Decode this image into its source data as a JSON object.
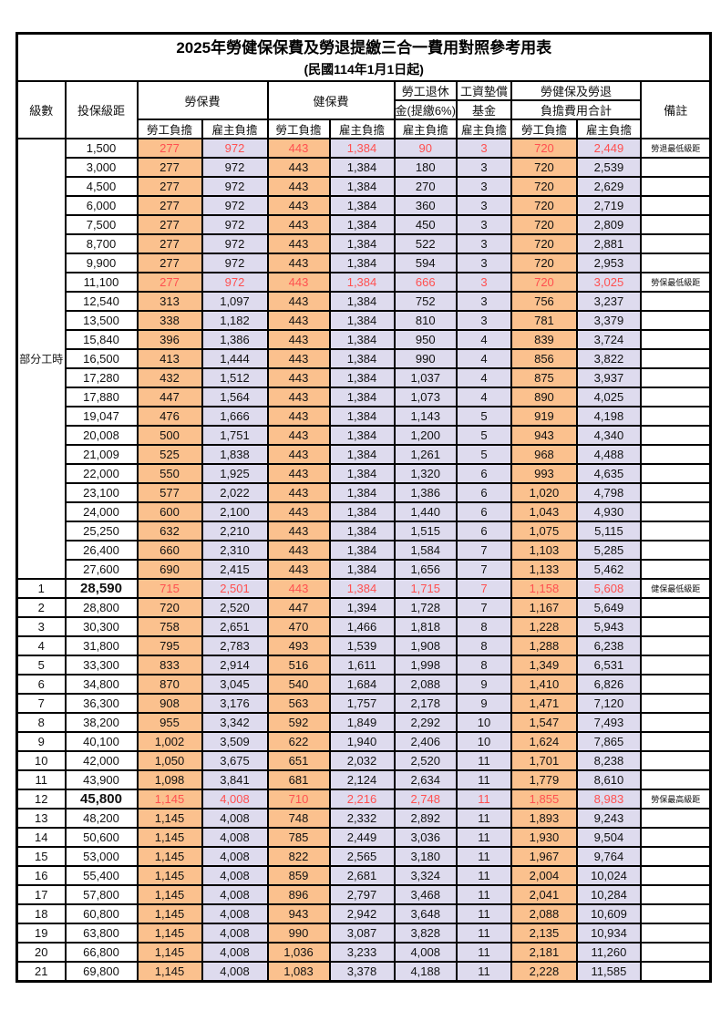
{
  "title": "2025年勞健保保費及勞退提繳三合一費用對照參考用表",
  "subtitle": "(民國114年1月1日起)",
  "columns": {
    "level": "級數",
    "salary_bracket": "投保級距",
    "labor_insurance": "勞保費",
    "health_insurance": "健保費",
    "pension_line1": "勞工退休",
    "pension_line2": "金(提繳6%)",
    "wage_fund_line1": "工資墊償",
    "wage_fund_line2": "基金",
    "total_line1": "勞健保及勞退",
    "total_line2": "負擔費用合計",
    "remark": "備註",
    "employee_share": "勞工負擔",
    "employer_share": "雇主負擔"
  },
  "part_time_label": "部分工時",
  "colors": {
    "employee_bg": "#FBC18E",
    "employer_bg": "#DEDBEE",
    "highlight_text": "#FF5050",
    "remark_text": "#FF4040",
    "border": "#000000"
  },
  "rows": [
    {
      "lv": "",
      "sal": "1,500",
      "li_e": "277",
      "li_r": "972",
      "hi_e": "443",
      "hi_r": "1,384",
      "pen": "90",
      "fund": "3",
      "tot_e": "720",
      "tot_r": "2,449",
      "remark": "勞退最低級距",
      "hl": true,
      "bold": false
    },
    {
      "lv": "",
      "sal": "3,000",
      "li_e": "277",
      "li_r": "972",
      "hi_e": "443",
      "hi_r": "1,384",
      "pen": "180",
      "fund": "3",
      "tot_e": "720",
      "tot_r": "2,539",
      "remark": "",
      "hl": false,
      "bold": false
    },
    {
      "lv": "",
      "sal": "4,500",
      "li_e": "277",
      "li_r": "972",
      "hi_e": "443",
      "hi_r": "1,384",
      "pen": "270",
      "fund": "3",
      "tot_e": "720",
      "tot_r": "2,629",
      "remark": "",
      "hl": false,
      "bold": false
    },
    {
      "lv": "",
      "sal": "6,000",
      "li_e": "277",
      "li_r": "972",
      "hi_e": "443",
      "hi_r": "1,384",
      "pen": "360",
      "fund": "3",
      "tot_e": "720",
      "tot_r": "2,719",
      "remark": "",
      "hl": false,
      "bold": false
    },
    {
      "lv": "",
      "sal": "7,500",
      "li_e": "277",
      "li_r": "972",
      "hi_e": "443",
      "hi_r": "1,384",
      "pen": "450",
      "fund": "3",
      "tot_e": "720",
      "tot_r": "2,809",
      "remark": "",
      "hl": false,
      "bold": false
    },
    {
      "lv": "",
      "sal": "8,700",
      "li_e": "277",
      "li_r": "972",
      "hi_e": "443",
      "hi_r": "1,384",
      "pen": "522",
      "fund": "3",
      "tot_e": "720",
      "tot_r": "2,881",
      "remark": "",
      "hl": false,
      "bold": false
    },
    {
      "lv": "",
      "sal": "9,900",
      "li_e": "277",
      "li_r": "972",
      "hi_e": "443",
      "hi_r": "1,384",
      "pen": "594",
      "fund": "3",
      "tot_e": "720",
      "tot_r": "2,953",
      "remark": "",
      "hl": false,
      "bold": false
    },
    {
      "lv": "",
      "sal": "11,100",
      "li_e": "277",
      "li_r": "972",
      "hi_e": "443",
      "hi_r": "1,384",
      "pen": "666",
      "fund": "3",
      "tot_e": "720",
      "tot_r": "3,025",
      "remark": "勞保最低級距",
      "hl": true,
      "bold": false
    },
    {
      "lv": "",
      "sal": "12,540",
      "li_e": "313",
      "li_r": "1,097",
      "hi_e": "443",
      "hi_r": "1,384",
      "pen": "752",
      "fund": "3",
      "tot_e": "756",
      "tot_r": "3,237",
      "remark": "",
      "hl": false,
      "bold": false
    },
    {
      "lv": "",
      "sal": "13,500",
      "li_e": "338",
      "li_r": "1,182",
      "hi_e": "443",
      "hi_r": "1,384",
      "pen": "810",
      "fund": "3",
      "tot_e": "781",
      "tot_r": "3,379",
      "remark": "",
      "hl": false,
      "bold": false
    },
    {
      "lv": "",
      "sal": "15,840",
      "li_e": "396",
      "li_r": "1,386",
      "hi_e": "443",
      "hi_r": "1,384",
      "pen": "950",
      "fund": "4",
      "tot_e": "839",
      "tot_r": "3,724",
      "remark": "",
      "hl": false,
      "bold": false
    },
    {
      "lv": "",
      "sal": "16,500",
      "li_e": "413",
      "li_r": "1,444",
      "hi_e": "443",
      "hi_r": "1,384",
      "pen": "990",
      "fund": "4",
      "tot_e": "856",
      "tot_r": "3,822",
      "remark": "",
      "hl": false,
      "bold": false
    },
    {
      "lv": "",
      "sal": "17,280",
      "li_e": "432",
      "li_r": "1,512",
      "hi_e": "443",
      "hi_r": "1,384",
      "pen": "1,037",
      "fund": "4",
      "tot_e": "875",
      "tot_r": "3,937",
      "remark": "",
      "hl": false,
      "bold": false
    },
    {
      "lv": "",
      "sal": "17,880",
      "li_e": "447",
      "li_r": "1,564",
      "hi_e": "443",
      "hi_r": "1,384",
      "pen": "1,073",
      "fund": "4",
      "tot_e": "890",
      "tot_r": "4,025",
      "remark": "",
      "hl": false,
      "bold": false
    },
    {
      "lv": "",
      "sal": "19,047",
      "li_e": "476",
      "li_r": "1,666",
      "hi_e": "443",
      "hi_r": "1,384",
      "pen": "1,143",
      "fund": "5",
      "tot_e": "919",
      "tot_r": "4,198",
      "remark": "",
      "hl": false,
      "bold": false
    },
    {
      "lv": "",
      "sal": "20,008",
      "li_e": "500",
      "li_r": "1,751",
      "hi_e": "443",
      "hi_r": "1,384",
      "pen": "1,200",
      "fund": "5",
      "tot_e": "943",
      "tot_r": "4,340",
      "remark": "",
      "hl": false,
      "bold": false
    },
    {
      "lv": "",
      "sal": "21,009",
      "li_e": "525",
      "li_r": "1,838",
      "hi_e": "443",
      "hi_r": "1,384",
      "pen": "1,261",
      "fund": "5",
      "tot_e": "968",
      "tot_r": "4,488",
      "remark": "",
      "hl": false,
      "bold": false
    },
    {
      "lv": "",
      "sal": "22,000",
      "li_e": "550",
      "li_r": "1,925",
      "hi_e": "443",
      "hi_r": "1,384",
      "pen": "1,320",
      "fund": "6",
      "tot_e": "993",
      "tot_r": "4,635",
      "remark": "",
      "hl": false,
      "bold": false
    },
    {
      "lv": "",
      "sal": "23,100",
      "li_e": "577",
      "li_r": "2,022",
      "hi_e": "443",
      "hi_r": "1,384",
      "pen": "1,386",
      "fund": "6",
      "tot_e": "1,020",
      "tot_r": "4,798",
      "remark": "",
      "hl": false,
      "bold": false
    },
    {
      "lv": "",
      "sal": "24,000",
      "li_e": "600",
      "li_r": "2,100",
      "hi_e": "443",
      "hi_r": "1,384",
      "pen": "1,440",
      "fund": "6",
      "tot_e": "1,043",
      "tot_r": "4,930",
      "remark": "",
      "hl": false,
      "bold": false
    },
    {
      "lv": "",
      "sal": "25,250",
      "li_e": "632",
      "li_r": "2,210",
      "hi_e": "443",
      "hi_r": "1,384",
      "pen": "1,515",
      "fund": "6",
      "tot_e": "1,075",
      "tot_r": "5,115",
      "remark": "",
      "hl": false,
      "bold": false
    },
    {
      "lv": "",
      "sal": "26,400",
      "li_e": "660",
      "li_r": "2,310",
      "hi_e": "443",
      "hi_r": "1,384",
      "pen": "1,584",
      "fund": "7",
      "tot_e": "1,103",
      "tot_r": "5,285",
      "remark": "",
      "hl": false,
      "bold": false
    },
    {
      "lv": "",
      "sal": "27,600",
      "li_e": "690",
      "li_r": "2,415",
      "hi_e": "443",
      "hi_r": "1,384",
      "pen": "1,656",
      "fund": "7",
      "tot_e": "1,133",
      "tot_r": "5,462",
      "remark": "",
      "hl": false,
      "bold": false
    },
    {
      "lv": "1",
      "sal": "28,590",
      "li_e": "715",
      "li_r": "2,501",
      "hi_e": "443",
      "hi_r": "1,384",
      "pen": "1,715",
      "fund": "7",
      "tot_e": "1,158",
      "tot_r": "5,608",
      "remark": "健保最低級距",
      "hl": true,
      "bold": true
    },
    {
      "lv": "2",
      "sal": "28,800",
      "li_e": "720",
      "li_r": "2,520",
      "hi_e": "447",
      "hi_r": "1,394",
      "pen": "1,728",
      "fund": "7",
      "tot_e": "1,167",
      "tot_r": "5,649",
      "remark": "",
      "hl": false,
      "bold": false
    },
    {
      "lv": "3",
      "sal": "30,300",
      "li_e": "758",
      "li_r": "2,651",
      "hi_e": "470",
      "hi_r": "1,466",
      "pen": "1,818",
      "fund": "8",
      "tot_e": "1,228",
      "tot_r": "5,943",
      "remark": "",
      "hl": false,
      "bold": false
    },
    {
      "lv": "4",
      "sal": "31,800",
      "li_e": "795",
      "li_r": "2,783",
      "hi_e": "493",
      "hi_r": "1,539",
      "pen": "1,908",
      "fund": "8",
      "tot_e": "1,288",
      "tot_r": "6,238",
      "remark": "",
      "hl": false,
      "bold": false
    },
    {
      "lv": "5",
      "sal": "33,300",
      "li_e": "833",
      "li_r": "2,914",
      "hi_e": "516",
      "hi_r": "1,611",
      "pen": "1,998",
      "fund": "8",
      "tot_e": "1,349",
      "tot_r": "6,531",
      "remark": "",
      "hl": false,
      "bold": false
    },
    {
      "lv": "6",
      "sal": "34,800",
      "li_e": "870",
      "li_r": "3,045",
      "hi_e": "540",
      "hi_r": "1,684",
      "pen": "2,088",
      "fund": "9",
      "tot_e": "1,410",
      "tot_r": "6,826",
      "remark": "",
      "hl": false,
      "bold": false
    },
    {
      "lv": "7",
      "sal": "36,300",
      "li_e": "908",
      "li_r": "3,176",
      "hi_e": "563",
      "hi_r": "1,757",
      "pen": "2,178",
      "fund": "9",
      "tot_e": "1,471",
      "tot_r": "7,120",
      "remark": "",
      "hl": false,
      "bold": false
    },
    {
      "lv": "8",
      "sal": "38,200",
      "li_e": "955",
      "li_r": "3,342",
      "hi_e": "592",
      "hi_r": "1,849",
      "pen": "2,292",
      "fund": "10",
      "tot_e": "1,547",
      "tot_r": "7,493",
      "remark": "",
      "hl": false,
      "bold": false
    },
    {
      "lv": "9",
      "sal": "40,100",
      "li_e": "1,002",
      "li_r": "3,509",
      "hi_e": "622",
      "hi_r": "1,940",
      "pen": "2,406",
      "fund": "10",
      "tot_e": "1,624",
      "tot_r": "7,865",
      "remark": "",
      "hl": false,
      "bold": false
    },
    {
      "lv": "10",
      "sal": "42,000",
      "li_e": "1,050",
      "li_r": "3,675",
      "hi_e": "651",
      "hi_r": "2,032",
      "pen": "2,520",
      "fund": "11",
      "tot_e": "1,701",
      "tot_r": "8,238",
      "remark": "",
      "hl": false,
      "bold": false
    },
    {
      "lv": "11",
      "sal": "43,900",
      "li_e": "1,098",
      "li_r": "3,841",
      "hi_e": "681",
      "hi_r": "2,124",
      "pen": "2,634",
      "fund": "11",
      "tot_e": "1,779",
      "tot_r": "8,610",
      "remark": "",
      "hl": false,
      "bold": false
    },
    {
      "lv": "12",
      "sal": "45,800",
      "li_e": "1,145",
      "li_r": "4,008",
      "hi_e": "710",
      "hi_r": "2,216",
      "pen": "2,748",
      "fund": "11",
      "tot_e": "1,855",
      "tot_r": "8,983",
      "remark": "勞保最高級距",
      "hl": true,
      "bold": true
    },
    {
      "lv": "13",
      "sal": "48,200",
      "li_e": "1,145",
      "li_r": "4,008",
      "hi_e": "748",
      "hi_r": "2,332",
      "pen": "2,892",
      "fund": "11",
      "tot_e": "1,893",
      "tot_r": "9,243",
      "remark": "",
      "hl": false,
      "bold": false
    },
    {
      "lv": "14",
      "sal": "50,600",
      "li_e": "1,145",
      "li_r": "4,008",
      "hi_e": "785",
      "hi_r": "2,449",
      "pen": "3,036",
      "fund": "11",
      "tot_e": "1,930",
      "tot_r": "9,504",
      "remark": "",
      "hl": false,
      "bold": false
    },
    {
      "lv": "15",
      "sal": "53,000",
      "li_e": "1,145",
      "li_r": "4,008",
      "hi_e": "822",
      "hi_r": "2,565",
      "pen": "3,180",
      "fund": "11",
      "tot_e": "1,967",
      "tot_r": "9,764",
      "remark": "",
      "hl": false,
      "bold": false
    },
    {
      "lv": "16",
      "sal": "55,400",
      "li_e": "1,145",
      "li_r": "4,008",
      "hi_e": "859",
      "hi_r": "2,681",
      "pen": "3,324",
      "fund": "11",
      "tot_e": "2,004",
      "tot_r": "10,024",
      "remark": "",
      "hl": false,
      "bold": false
    },
    {
      "lv": "17",
      "sal": "57,800",
      "li_e": "1,145",
      "li_r": "4,008",
      "hi_e": "896",
      "hi_r": "2,797",
      "pen": "3,468",
      "fund": "11",
      "tot_e": "2,041",
      "tot_r": "10,284",
      "remark": "",
      "hl": false,
      "bold": false
    },
    {
      "lv": "18",
      "sal": "60,800",
      "li_e": "1,145",
      "li_r": "4,008",
      "hi_e": "943",
      "hi_r": "2,942",
      "pen": "3,648",
      "fund": "11",
      "tot_e": "2,088",
      "tot_r": "10,609",
      "remark": "",
      "hl": false,
      "bold": false
    },
    {
      "lv": "19",
      "sal": "63,800",
      "li_e": "1,145",
      "li_r": "4,008",
      "hi_e": "990",
      "hi_r": "3,087",
      "pen": "3,828",
      "fund": "11",
      "tot_e": "2,135",
      "tot_r": "10,934",
      "remark": "",
      "hl": false,
      "bold": false
    },
    {
      "lv": "20",
      "sal": "66,800",
      "li_e": "1,145",
      "li_r": "4,008",
      "hi_e": "1,036",
      "hi_r": "3,233",
      "pen": "4,008",
      "fund": "11",
      "tot_e": "2,181",
      "tot_r": "11,260",
      "remark": "",
      "hl": false,
      "bold": false
    },
    {
      "lv": "21",
      "sal": "69,800",
      "li_e": "1,145",
      "li_r": "4,008",
      "hi_e": "1,083",
      "hi_r": "3,378",
      "pen": "4,188",
      "fund": "11",
      "tot_e": "2,228",
      "tot_r": "11,585",
      "remark": "",
      "hl": false,
      "bold": false
    }
  ]
}
